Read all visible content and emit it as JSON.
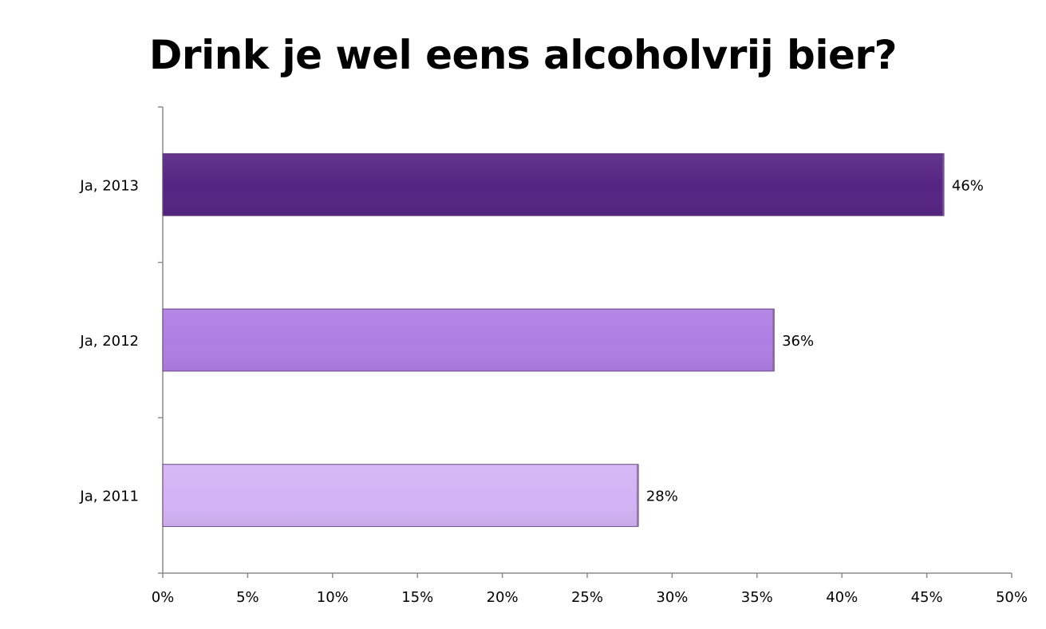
{
  "chart_data": {
    "type": "bar",
    "orientation": "horizontal",
    "title": "Drink je wel eens alcoholvrij bier?",
    "categories": [
      "Ja, 2013",
      "Ja, 2012",
      "Ja, 2011"
    ],
    "values": [
      46,
      36,
      28
    ],
    "value_labels": [
      "46%",
      "36%",
      "28%"
    ],
    "bar_colors": [
      "#562483",
      "#b07ee3",
      "#d3b3f5"
    ],
    "xlim": [
      0,
      50
    ],
    "x_ticks": [
      0,
      5,
      10,
      15,
      20,
      25,
      30,
      35,
      40,
      45,
      50
    ],
    "x_tick_labels": [
      "0%",
      "5%",
      "10%",
      "15%",
      "20%",
      "25%",
      "30%",
      "35%",
      "40%",
      "45%",
      "50%"
    ],
    "grid": false,
    "legend": "none"
  }
}
